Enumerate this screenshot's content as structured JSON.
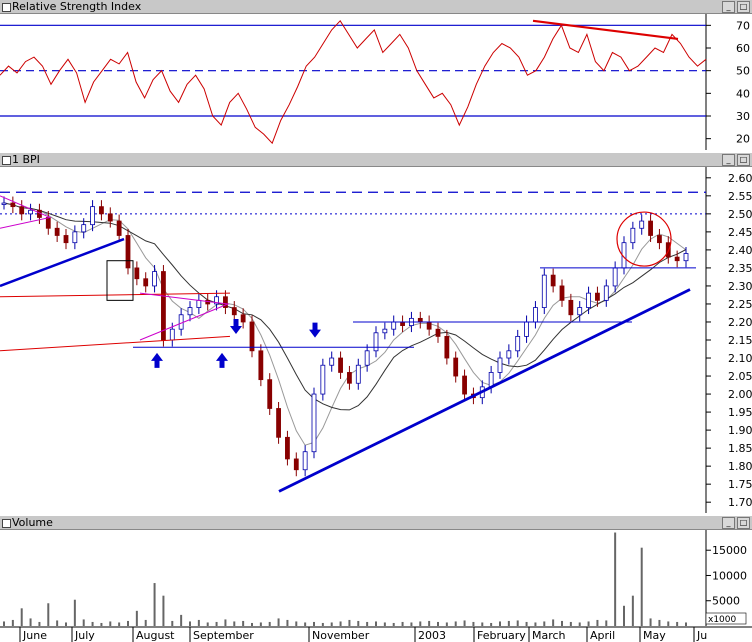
{
  "panels": {
    "rsi_title": "Relative Strength Index",
    "price_title": "1 BPI",
    "volume_title": "Volume",
    "volume_unit": "x1000"
  },
  "colors": {
    "rsi_line": "#cc0000",
    "trendline": "#0000cc",
    "bull_candle": "#0000aa",
    "bear_candle": "#880000",
    "pattern": "#cc00cc",
    "resistance_red": "#dd0000",
    "title_bar": "#c8c8c8"
  },
  "x_axis": {
    "labels": [
      "June",
      "July",
      "August",
      "September",
      "November",
      "2003",
      "February",
      "March",
      "April",
      "May",
      "Ju"
    ]
  },
  "chart_data": [
    {
      "type": "line",
      "title": "Relative Strength Index",
      "y_ticks": [
        20,
        30,
        40,
        50,
        60,
        70
      ],
      "ylim": [
        15,
        75
      ],
      "reference_lines": [
        30,
        50,
        70
      ],
      "series": [
        {
          "values": [
            48,
            52,
            49,
            54,
            56,
            52,
            44,
            50,
            55,
            49,
            36,
            45,
            50,
            55,
            53,
            58,
            45,
            38,
            46,
            50,
            41,
            36,
            44,
            48,
            42,
            30,
            26,
            36,
            40,
            33,
            25,
            22,
            18,
            28,
            35,
            43,
            52,
            56,
            62,
            68,
            72,
            66,
            60,
            64,
            68,
            58,
            62,
            66,
            60,
            50,
            44,
            38,
            40,
            35,
            26,
            34,
            44,
            52,
            58,
            62,
            60,
            56,
            48,
            50,
            56,
            64,
            70,
            60,
            58,
            66,
            54,
            50,
            58,
            56,
            50,
            52,
            56,
            60,
            58,
            66,
            62,
            56,
            52,
            55
          ]
        }
      ]
    },
    {
      "type": "line",
      "title": "1 BPI",
      "y_ticks": [
        1.7,
        1.75,
        1.8,
        1.85,
        1.9,
        1.95,
        2.0,
        2.05,
        2.1,
        2.15,
        2.2,
        2.25,
        2.3,
        2.35,
        2.4,
        2.45,
        2.5,
        2.55,
        2.6
      ],
      "ylim": [
        1.67,
        2.63
      ],
      "series": [
        {
          "values": [
            2.53,
            2.52,
            2.5,
            2.51,
            2.49,
            2.46,
            2.44,
            2.42,
            2.45,
            2.47,
            2.52,
            2.5,
            2.48,
            2.44,
            2.35,
            2.32,
            2.3,
            2.34,
            2.15,
            2.18,
            2.22,
            2.24,
            2.26,
            2.25,
            2.27,
            2.24,
            2.22,
            2.2,
            2.12,
            2.04,
            1.96,
            1.88,
            1.82,
            1.79,
            1.84,
            2.0,
            2.08,
            2.1,
            2.06,
            2.03,
            2.08,
            2.12,
            2.17,
            2.18,
            2.2,
            2.19,
            2.21,
            2.2,
            2.18,
            2.16,
            2.1,
            2.05,
            2.0,
            1.99,
            2.02,
            2.06,
            2.1,
            2.12,
            2.16,
            2.2,
            2.24,
            2.33,
            2.3,
            2.26,
            2.22,
            2.24,
            2.28,
            2.26,
            2.3,
            2.35,
            2.42,
            2.46,
            2.48,
            2.44,
            2.42,
            2.38,
            2.37,
            2.39
          ]
        }
      ]
    },
    {
      "type": "bar",
      "title": "Volume",
      "y_ticks": [
        5000,
        10000,
        15000
      ],
      "ylim": [
        0,
        19000
      ],
      "series": [
        {
          "values": [
            900,
            1200,
            3500,
            1500,
            800,
            4500,
            1100,
            700,
            5200,
            1300,
            800,
            600,
            900,
            700,
            1000,
            3000,
            1200,
            8500,
            6000,
            1000,
            2200,
            900,
            1200,
            700,
            800,
            1300,
            900,
            1000,
            600,
            700,
            800,
            1500,
            1200,
            900,
            700,
            800,
            600,
            700,
            900,
            1200,
            1000,
            800,
            900,
            700,
            600,
            800,
            700,
            900,
            1000,
            800,
            700,
            900,
            1100,
            800,
            700,
            600,
            900,
            1000,
            1100,
            800,
            700,
            900,
            1300,
            1000,
            800,
            700,
            900,
            1200,
            1100,
            18500,
            4000,
            6000,
            15500,
            1500,
            1200,
            900,
            800,
            700
          ]
        }
      ]
    }
  ]
}
